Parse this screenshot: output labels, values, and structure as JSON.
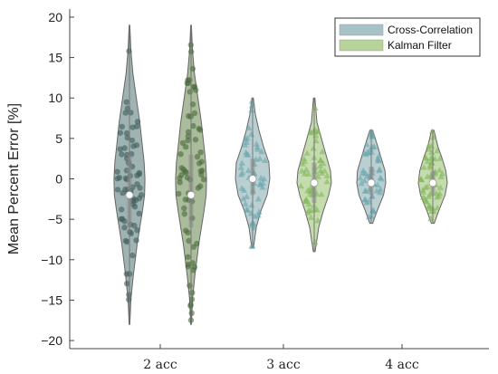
{
  "chart_data": {
    "type": "violin",
    "ylabel": "Mean Percent Error [%]",
    "xlabel": "",
    "ylim": [
      -21,
      21
    ],
    "yticks": [
      -20,
      -15,
      -10,
      -5,
      0,
      5,
      10,
      15,
      20
    ],
    "categories": [
      "2 acc",
      "3 acc",
      "4 acc"
    ],
    "legend": {
      "placement": "top-right"
    },
    "series": [
      {
        "name": "Cross-Correlation",
        "marker": "circle",
        "violins": [
          {
            "category": "2 acc",
            "min": -18,
            "max": 19,
            "median": -2,
            "q1": -6,
            "q3": 3,
            "profile": [
              [
                -18,
                0.02
              ],
              [
                -15,
                0.08
              ],
              [
                -12,
                0.22
              ],
              [
                -8,
                0.45
              ],
              [
                -4,
                0.75
              ],
              [
                -2,
                0.88
              ],
              [
                0,
                0.9
              ],
              [
                2,
                0.85
              ],
              [
                4,
                0.75
              ],
              [
                7,
                0.6
              ],
              [
                10,
                0.4
              ],
              [
                13,
                0.2
              ],
              [
                16,
                0.08
              ],
              [
                19,
                0.02
              ]
            ]
          },
          {
            "category": "3 acc",
            "min": -8.5,
            "max": 10,
            "median": 0,
            "q1": -2,
            "q3": 2.5,
            "profile": [
              [
                -8.5,
                0.05
              ],
              [
                -6,
                0.2
              ],
              [
                -4,
                0.45
              ],
              [
                -2,
                0.8
              ],
              [
                0,
                0.95
              ],
              [
                2,
                0.9
              ],
              [
                4,
                0.6
              ],
              [
                6,
                0.35
              ],
              [
                8,
                0.15
              ],
              [
                10,
                0.04
              ]
            ]
          },
          {
            "category": "4 acc",
            "min": -5.5,
            "max": 6,
            "median": -0.5,
            "q1": -2,
            "q3": 1.5,
            "profile": [
              [
                -5.5,
                0.1
              ],
              [
                -4,
                0.4
              ],
              [
                -2,
                0.85
              ],
              [
                -0.5,
                1.0
              ],
              [
                1,
                0.95
              ],
              [
                2.5,
                0.7
              ],
              [
                4,
                0.45
              ],
              [
                6,
                0.1
              ]
            ]
          }
        ]
      },
      {
        "name": "Kalman Filter",
        "marker": "circle",
        "violins": [
          {
            "category": "2 acc",
            "min": -18,
            "max": 19,
            "median": -2,
            "q1": -6,
            "q3": 3,
            "profile": [
              [
                -18,
                0.02
              ],
              [
                -15,
                0.08
              ],
              [
                -12,
                0.22
              ],
              [
                -8,
                0.45
              ],
              [
                -4,
                0.75
              ],
              [
                -2,
                0.88
              ],
              [
                0,
                0.9
              ],
              [
                2,
                0.85
              ],
              [
                4,
                0.75
              ],
              [
                7,
                0.6
              ],
              [
                10,
                0.4
              ],
              [
                13,
                0.2
              ],
              [
                16,
                0.08
              ],
              [
                19,
                0.02
              ]
            ]
          },
          {
            "category": "3 acc",
            "min": -9,
            "max": 10,
            "median": -0.5,
            "q1": -3,
            "q3": 2,
            "profile": [
              [
                -9,
                0.05
              ],
              [
                -6,
                0.25
              ],
              [
                -4,
                0.5
              ],
              [
                -2,
                0.8
              ],
              [
                -0.5,
                0.95
              ],
              [
                1,
                0.9
              ],
              [
                3,
                0.65
              ],
              [
                5,
                0.4
              ],
              [
                7,
                0.15
              ],
              [
                10,
                0.04
              ]
            ]
          },
          {
            "category": "4 acc",
            "min": -5.5,
            "max": 6,
            "median": -0.5,
            "q1": -2,
            "q3": 1,
            "profile": [
              [
                -5.5,
                0.1
              ],
              [
                -4,
                0.4
              ],
              [
                -2,
                0.85
              ],
              [
                -0.5,
                1.0
              ],
              [
                1,
                0.9
              ],
              [
                2.5,
                0.65
              ],
              [
                4,
                0.35
              ],
              [
                6,
                0.08
              ]
            ]
          }
        ]
      }
    ],
    "colors": {
      "cc_fill": "#a7c3c7",
      "kf_fill": "#b7d39a",
      "cc_marker_2acc": "#3f5b5b",
      "kf_marker_2acc": "#4a6b3a",
      "cc_marker": "#6aa7ad",
      "kf_marker": "#86b85e",
      "outline": "#666666",
      "median": "#ffffff"
    }
  }
}
